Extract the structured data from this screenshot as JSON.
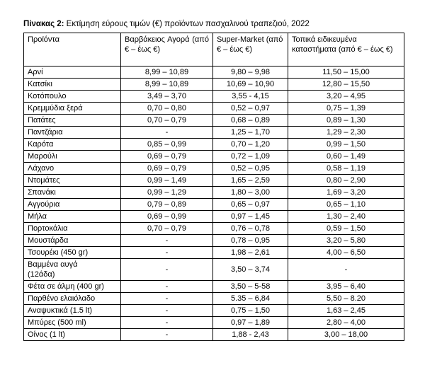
{
  "title": {
    "label": "Πίνακας 2:",
    "text": " Εκτίμηση εύρους τιμών (€) προϊόντων πασχαλινού τραπεζιού, 2022"
  },
  "table": {
    "columns": [
      "Προϊόντα",
      "Βαρβάκειος Αγορά (από € – έως €)",
      "Super-Market (από € – έως €)",
      "Τοπικά ειδικευμένα καταστήματα (από € – έως €)"
    ],
    "rows": [
      [
        "Αρνί",
        "8,99 – 10,89",
        "9,80 – 9,98",
        "11,50 – 15,00"
      ],
      [
        "Κατσίκι",
        "8,99 – 10,89",
        "10,69 – 10,90",
        "12,80 – 15,50"
      ],
      [
        "Κοτόπουλο",
        "3,49 – 3,70",
        "3,55 - 4,15",
        "3,20 – 4,95"
      ],
      [
        "Κρεμμύδια ξερά",
        "0,70 – 0,80",
        "0,52 – 0,97",
        "0,75 – 1,39"
      ],
      [
        "Πατάτες",
        "0,70 – 0,79",
        "0,68 – 0,89",
        "0,89 – 1,30"
      ],
      [
        "Παντζάρια",
        "-",
        "1,25 – 1,70",
        "1,29 – 2,30"
      ],
      [
        "Καρότα",
        "0,85 – 0,99",
        "0,70 – 1,20",
        "0,99 – 1,50"
      ],
      [
        "Μαρούλι",
        "0,69 – 0,79",
        "0,72 – 1,09",
        "0,60 – 1,49"
      ],
      [
        "Λάχανο",
        "0,69 – 0,79",
        "0,52 – 0,95",
        "0,58 – 1,19"
      ],
      [
        "Ντομάτες",
        "0,99 – 1,49",
        "1,65 – 2,59",
        "0,80 – 2,90"
      ],
      [
        "Σπανάκι",
        "0,99 – 1,29",
        "1,80 – 3,00",
        "1,69 – 3,20"
      ],
      [
        "Αγγούρια",
        "0,79 – 0,89",
        "0,65 – 0,97",
        "0,65 – 1,10"
      ],
      [
        "Μήλα",
        "0,69 – 0,99",
        "0,97 – 1,45",
        "1,30 – 2,40"
      ],
      [
        "Πορτοκάλια",
        "0,70 – 0,79",
        "0,76 – 0,78",
        "0,59 – 1,50"
      ],
      [
        "Μουστάρδα",
        "-",
        "0,78 – 0,95",
        "3,20 – 5,80"
      ],
      [
        "Τσουρέκι (450 gr)",
        "-",
        "1,98 – 2,61",
        "4,00 – 6,50"
      ],
      [
        "Βαμμένα αυγά\n(12άδα)",
        "-",
        "3,50 – 3,74",
        "-"
      ],
      [
        "Φέτα σε άλμη (400 gr)",
        "-",
        "3,50 – 5-58",
        "3,95 – 6,40"
      ],
      [
        "Παρθένο ελαιόλαδο",
        "-",
        "5.35 – 6,84",
        "5,50 – 8.20"
      ],
      [
        "Αναψυκτικά (1.5 lt)",
        "-",
        "0,75 – 1,50",
        "1,63 – 2,45"
      ],
      [
        "Μπύρες (500 ml)",
        "-",
        "0,97 – 1,89",
        "2,80 – 4,00"
      ],
      [
        "Οίνος (1 lt)",
        "-",
        "1,88 - 2,43",
        "3,00 – 18,00"
      ]
    ]
  }
}
